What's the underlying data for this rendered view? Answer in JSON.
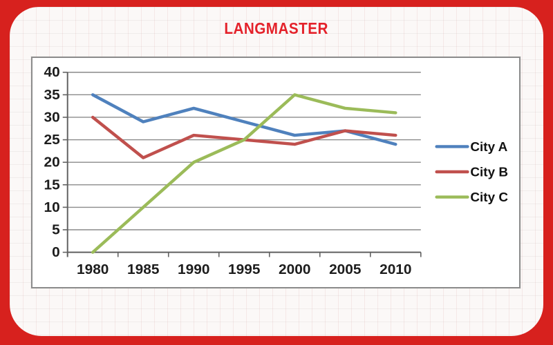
{
  "brand": {
    "logo_text": "LANGMASTER",
    "logo_color": "#e4222b",
    "frame_color": "#d7211e"
  },
  "chart_data": {
    "type": "line",
    "title": "",
    "xlabel": "",
    "ylabel": "",
    "categories": [
      "1980",
      "1985",
      "1990",
      "1995",
      "2000",
      "2005",
      "2010"
    ],
    "series": [
      {
        "name": "City A",
        "color": "#4f81bd",
        "values": [
          35,
          29,
          32,
          29,
          26,
          27,
          24
        ]
      },
      {
        "name": "City B",
        "color": "#c0504d",
        "values": [
          30,
          21,
          26,
          25,
          24,
          27,
          26
        ]
      },
      {
        "name": "City C",
        "color": "#9bbb59",
        "values": [
          0,
          10,
          20,
          25,
          35,
          32,
          31
        ]
      }
    ],
    "ylim": [
      0,
      40
    ],
    "ytick_step": 5,
    "grid": true,
    "legend_position": "right",
    "gridline_color": "#8a8a8a",
    "axis_color": "#606060",
    "tick_label_color": "#1d1d1d"
  }
}
